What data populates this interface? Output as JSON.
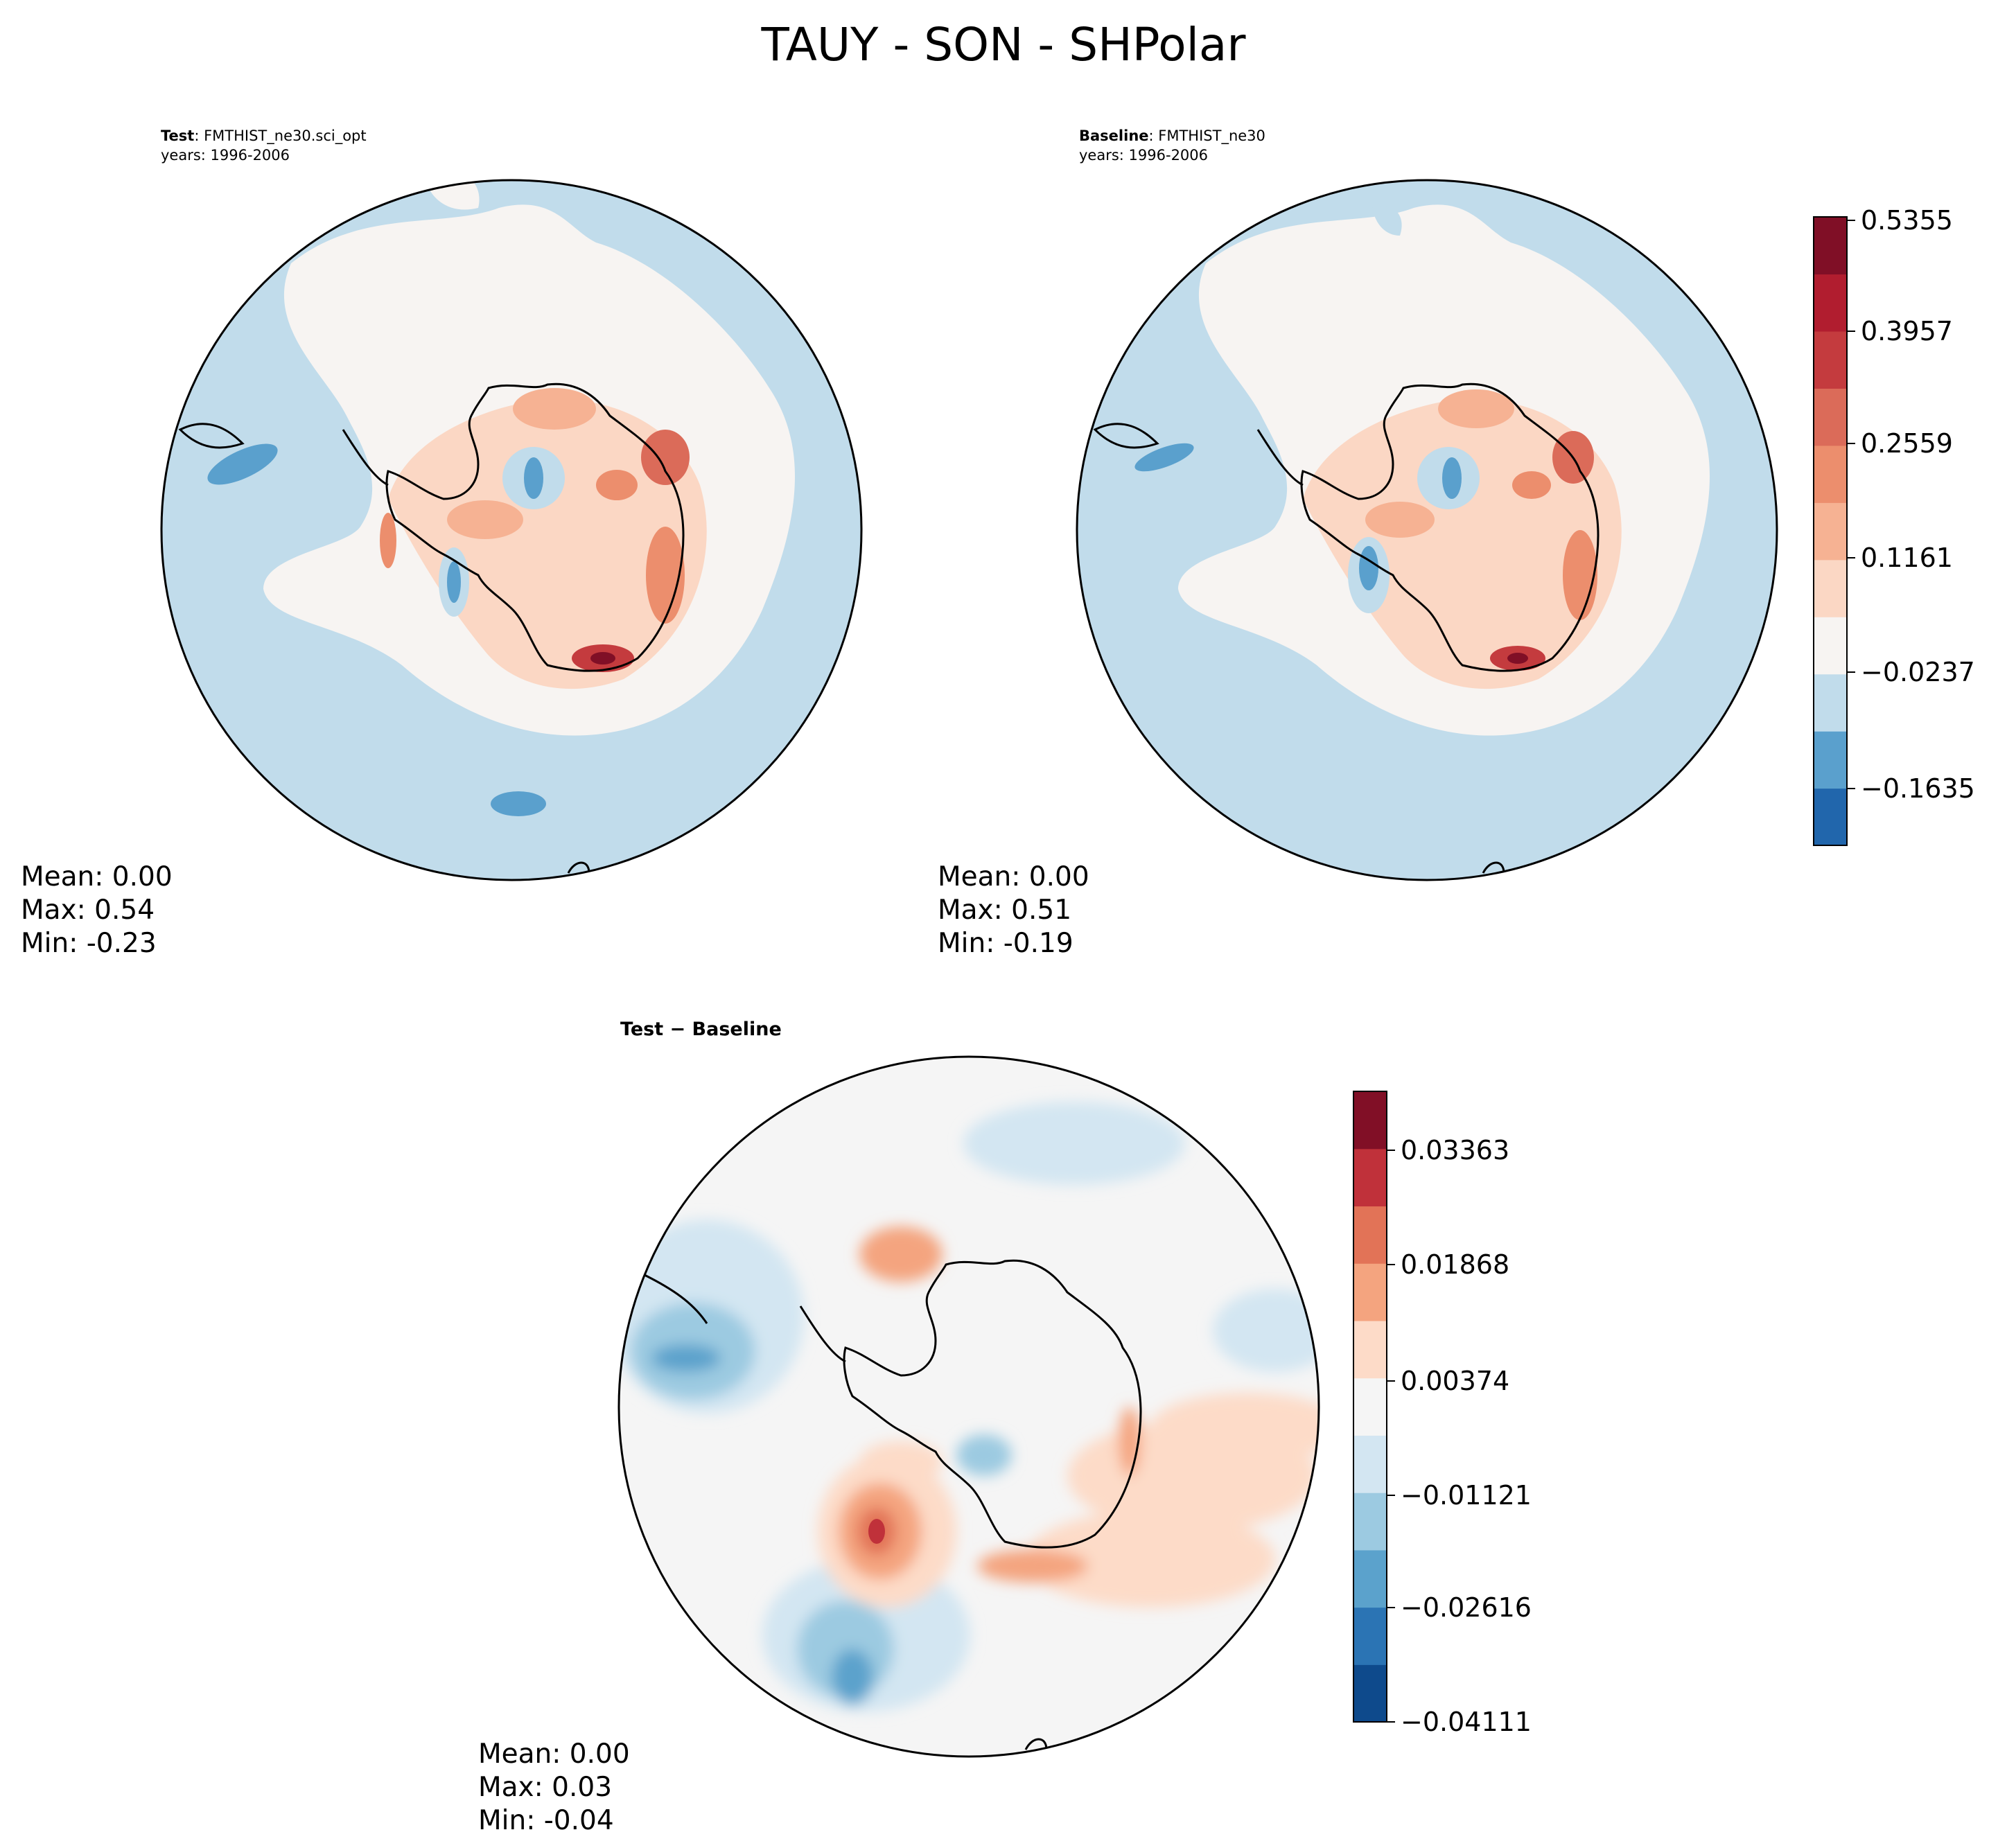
{
  "title": "TAUY - SON - SHPolar",
  "panels": {
    "test": {
      "label": "Test",
      "name": "FMTHIST_ne30.sci_opt",
      "years": "years: 1996-2006",
      "mean": "Mean:  0.00",
      "max": "Max:  0.54",
      "min": "Min: -0.23"
    },
    "baseline": {
      "label": "Baseline",
      "name": "FMTHIST_ne30",
      "years": "years: 1996-2006",
      "mean": "Mean:  0.00",
      "max": "Max:  0.51",
      "min": "Min: -0.19"
    },
    "diff": {
      "title": "Test − Baseline",
      "mean": "Mean:  0.00",
      "max": "Max:  0.03",
      "min": "Min: -0.04"
    }
  },
  "colorbars": {
    "main": {
      "ticks": [
        "0.5355",
        "0.3957",
        "0.2559",
        "0.1161",
        "−0.0237",
        "−0.1635"
      ],
      "colors": [
        "#2166ac",
        "#5aa0cd",
        "#c1dceb",
        "#f7f4f2",
        "#fbd7c4",
        "#f6b293",
        "#ec8e6d",
        "#db6b59",
        "#c43b3e",
        "#b11d2f",
        "#800f26"
      ]
    },
    "diff": {
      "ticks": [
        "0.03363",
        "0.01868",
        "0.00374",
        "−0.01121",
        "−0.02616",
        "−0.04111"
      ],
      "colors": [
        "#0e4a8c",
        "#2b74b4",
        "#5ba2cc",
        "#9ccae1",
        "#d3e6f2",
        "#f5f5f5",
        "#fddbc8",
        "#f4a47f",
        "#e27357",
        "#c0313a",
        "#810f26"
      ]
    }
  }
}
